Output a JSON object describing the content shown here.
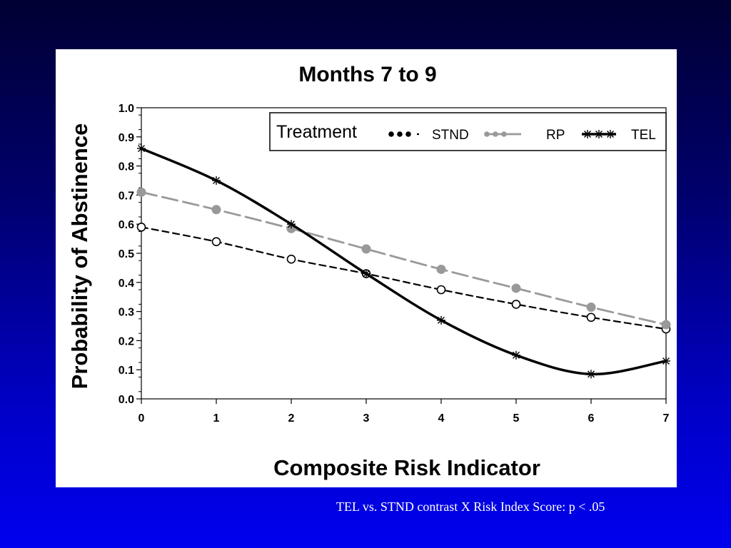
{
  "chart_data": {
    "type": "line",
    "title": "Months 7 to 9",
    "xlabel": "Composite Risk Indicator",
    "ylabel": "Probability of Abstinence",
    "x": [
      0,
      1,
      2,
      3,
      4,
      5,
      6,
      7
    ],
    "xlim": [
      0,
      7
    ],
    "ylim": [
      0,
      1
    ],
    "x_ticks": [
      "0",
      "1",
      "2",
      "3",
      "4",
      "5",
      "6",
      "7"
    ],
    "y_ticks": [
      "0.0",
      "0.1",
      "0.2",
      "0.3",
      "0.4",
      "0.5",
      "0.6",
      "0.7",
      "0.8",
      "0.9",
      "1.0"
    ],
    "grid": false,
    "legend": {
      "title": "Treatment",
      "placement": "top-right",
      "entries": [
        "STND",
        "RP",
        "TEL"
      ]
    },
    "series": [
      {
        "name": "STND",
        "values": [
          0.59,
          0.54,
          0.48,
          0.43,
          0.375,
          0.325,
          0.28,
          0.24
        ],
        "color": "#000000",
        "line_style": "dashed",
        "marker": "open-circle"
      },
      {
        "name": "RP",
        "values": [
          0.71,
          0.65,
          0.585,
          0.515,
          0.445,
          0.38,
          0.315,
          0.255
        ],
        "color": "#999999",
        "line_style": "long-dashed",
        "marker": "filled-circle"
      },
      {
        "name": "TEL",
        "values": [
          0.86,
          0.75,
          0.6,
          0.43,
          0.27,
          0.15,
          0.085,
          0.13
        ],
        "color": "#000000",
        "line_style": "solid",
        "marker": "star"
      }
    ]
  },
  "footnote": "TEL vs. STND contrast X Risk Index Score:  p < .05"
}
